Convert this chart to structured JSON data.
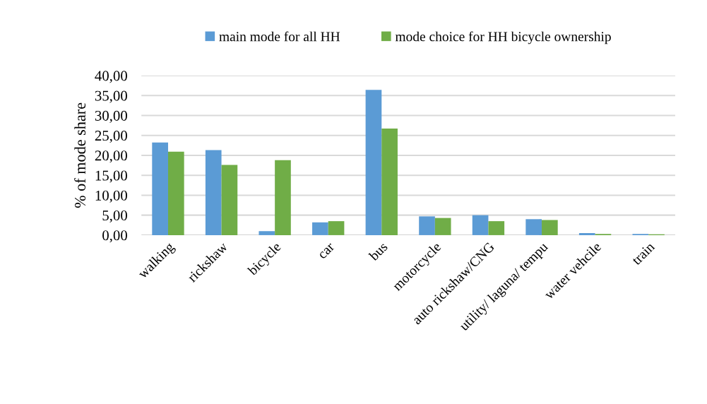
{
  "chart_data": {
    "type": "bar",
    "ylabel": "% of mode share",
    "categories": [
      "walking",
      "rickshaw",
      "bicycle",
      "car",
      "bus",
      "motorcycle",
      "auto rickshaw/CNG",
      "utility/ laguna/ tempu",
      "water vehcile",
      "train"
    ],
    "series": [
      {
        "name": "main mode for all HH",
        "color": "#5b9bd5",
        "values": [
          23.2,
          21.3,
          1.0,
          3.2,
          36.4,
          4.7,
          5.0,
          4.0,
          0.5,
          0.3
        ]
      },
      {
        "name": "mode choice for HH bicycle ownership",
        "color": "#70ad47",
        "values": [
          20.9,
          17.6,
          18.8,
          3.5,
          26.7,
          4.3,
          3.5,
          3.8,
          0.3,
          0.2
        ]
      }
    ],
    "ylim": [
      0,
      40
    ],
    "yticks": [
      {
        "value": 0,
        "label": "0,00"
      },
      {
        "value": 5,
        "label": "5,00"
      },
      {
        "value": 10,
        "label": "10,00"
      },
      {
        "value": 15,
        "label": "15,00"
      },
      {
        "value": 20,
        "label": "20,00"
      },
      {
        "value": 25,
        "label": "25,00"
      },
      {
        "value": 30,
        "label": "30,00"
      },
      {
        "value": 35,
        "label": "35,00"
      },
      {
        "value": 40,
        "label": "40,00"
      }
    ],
    "grid": "y",
    "legend": "top"
  }
}
